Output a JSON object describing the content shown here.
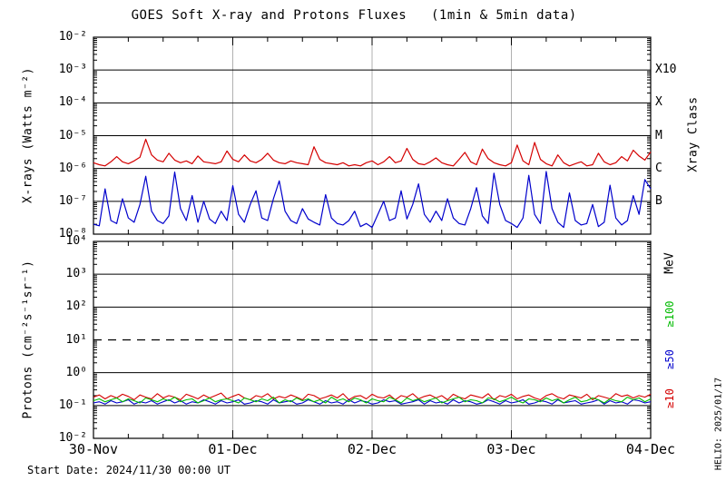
{
  "title": "GOES Soft X-ray and Protons Fluxes   (1min & 5min data)",
  "footer": {
    "start_date": "Start Date: 2024/11/30 00:00 UT"
  },
  "watermark": "HELIO: 2025/01/17",
  "colors": {
    "background": "#ffffff",
    "frame": "#000000",
    "day_gridline": "#b0b0b0",
    "xray_long_red": "#d40000",
    "xray_short_blue": "#0000cc",
    "proton_ge10_red": "#d40000",
    "proton_ge50_blue": "#0000cc",
    "proton_ge100_green": "#00bb00"
  },
  "chart_data": [
    {
      "type": "line",
      "panel": "xray",
      "yscale": "log",
      "ylabel": "X-rays (Watts m⁻²)",
      "ylim": [
        1e-08,
        0.01
      ],
      "ytick_labels": [
        "10⁻²",
        "10⁻³",
        "10⁻⁴",
        "10⁻⁵",
        "10⁻⁶",
        "10⁻⁷",
        "10⁻⁸"
      ],
      "xlim": [
        0,
        96
      ],
      "x_unit": "hours from 30-Nov 00:00 UT",
      "day_gridlines_hours": [
        24,
        48,
        72
      ],
      "gridlines": {
        "solid_decades": [
          -3,
          -4,
          -5,
          -6,
          -7
        ],
        "dashed_decades": []
      },
      "right_axis": {
        "title": "Xray Class",
        "labels": [
          {
            "text": "X10",
            "at_flux": 0.001
          },
          {
            "text": "X",
            "at_flux": 0.0001
          },
          {
            "text": "M",
            "at_flux": 1e-05
          },
          {
            "text": "C",
            "at_flux": 1e-06
          },
          {
            "text": "B",
            "at_flux": 1e-07
          }
        ]
      },
      "series": [
        {
          "name": "xray-long-1-8A",
          "color": "#d40000",
          "unit_scale": 1e-06,
          "width": 1.2,
          "values": [
            1.5,
            1.3,
            1.2,
            1.6,
            2.3,
            1.6,
            1.4,
            1.7,
            2.2,
            7.8,
            2.6,
            1.8,
            1.6,
            2.9,
            1.8,
            1.5,
            1.7,
            1.4,
            2.4,
            1.6,
            1.5,
            1.4,
            1.6,
            3.4,
            1.9,
            1.6,
            2.6,
            1.7,
            1.5,
            1.9,
            2.9,
            1.8,
            1.5,
            1.4,
            1.7,
            1.5,
            1.4,
            1.3,
            4.6,
            1.9,
            1.5,
            1.4,
            1.3,
            1.5,
            1.2,
            1.3,
            1.2,
            1.5,
            1.7,
            1.3,
            1.6,
            2.3,
            1.5,
            1.7,
            4.1,
            1.9,
            1.4,
            1.3,
            1.6,
            2.1,
            1.5,
            1.3,
            1.2,
            1.9,
            3.1,
            1.6,
            1.3,
            3.9,
            2.0,
            1.5,
            1.3,
            1.2,
            1.5,
            5.2,
            1.7,
            1.3,
            6.2,
            1.9,
            1.4,
            1.2,
            2.6,
            1.5,
            1.2,
            1.4,
            1.6,
            1.2,
            1.3,
            2.9,
            1.6,
            1.3,
            1.5,
            2.3,
            1.7,
            3.6,
            2.4,
            1.8,
            3.2
          ]
        },
        {
          "name": "xray-short-05-4A",
          "color": "#0000cc",
          "unit_scale": 1e-08,
          "width": 1.2,
          "values": [
            2.0,
            1.8,
            24,
            2.6,
            2.1,
            12,
            3.1,
            2.3,
            8,
            58,
            5,
            2.6,
            2.1,
            3.6,
            78,
            6,
            2.6,
            15,
            2.3,
            10,
            2.9,
            2.1,
            5,
            2.6,
            30,
            4,
            2.3,
            8,
            21,
            3.1,
            2.6,
            12,
            42,
            5,
            2.6,
            2.1,
            6,
            2.9,
            2.3,
            1.9,
            16,
            3.1,
            2.1,
            1.9,
            2.6,
            5,
            1.7,
            2.1,
            1.6,
            4,
            10,
            2.6,
            3.1,
            21,
            2.9,
            8,
            34,
            4,
            2.3,
            5,
            2.6,
            12,
            3.1,
            2.1,
            1.9,
            6,
            26,
            3.6,
            2.1,
            72,
            8,
            2.6,
            2.1,
            1.6,
            3.1,
            62,
            4,
            2.1,
            81,
            6,
            2.3,
            1.6,
            18,
            2.6,
            1.9,
            2.1,
            8,
            1.7,
            2.3,
            31,
            3.1,
            1.9,
            2.6,
            15,
            4,
            46,
            24
          ]
        }
      ]
    },
    {
      "type": "line",
      "panel": "proton",
      "yscale": "log",
      "ylabel": "Protons (cm⁻²s⁻¹sr⁻¹)",
      "ylim": [
        0.01,
        10000.0
      ],
      "ytick_labels": [
        "10⁴",
        "10³",
        "10²",
        "10¹",
        "10⁰",
        "10⁻¹",
        "10⁻²"
      ],
      "xlim": [
        0,
        96
      ],
      "xticks": {
        "positions_hours": [
          0,
          24,
          48,
          72,
          96
        ],
        "labels": [
          "30-Nov",
          "01-Dec",
          "02-Dec",
          "03-Dec",
          "04-Dec"
        ]
      },
      "day_gridlines_hours": [
        24,
        48,
        72
      ],
      "gridlines": {
        "solid_decades": [
          3,
          2,
          0,
          -1
        ],
        "dashed_decades": [
          1
        ]
      },
      "threshold_line": {
        "value": 10,
        "style": "dashed"
      },
      "right_axis": {
        "title": "MeV",
        "labels": [
          {
            "text": "≥100",
            "color": "#00bb00"
          },
          {
            "text": "≥50",
            "color": "#0000cc"
          },
          {
            "text": "≥10",
            "color": "#d40000"
          }
        ]
      },
      "series": [
        {
          "name": "proton-ge10MeV",
          "color": "#d40000",
          "unit_scale": 1,
          "width": 1.1,
          "values": [
            0.18,
            0.21,
            0.16,
            0.2,
            0.17,
            0.22,
            0.19,
            0.15,
            0.21,
            0.18,
            0.16,
            0.23,
            0.17,
            0.2,
            0.18,
            0.15,
            0.22,
            0.19,
            0.16,
            0.21,
            0.17,
            0.2,
            0.24,
            0.16,
            0.19,
            0.22,
            0.17,
            0.15,
            0.2,
            0.18,
            0.23,
            0.16,
            0.19,
            0.17,
            0.21,
            0.18,
            0.15,
            0.22,
            0.2,
            0.16,
            0.18,
            0.21,
            0.17,
            0.23,
            0.15,
            0.19,
            0.2,
            0.16,
            0.22,
            0.18,
            0.17,
            0.21,
            0.15,
            0.2,
            0.18,
            0.23,
            0.16,
            0.19,
            0.21,
            0.17,
            0.2,
            0.15,
            0.22,
            0.18,
            0.16,
            0.21,
            0.19,
            0.17,
            0.23,
            0.15,
            0.2,
            0.18,
            0.22,
            0.16,
            0.19,
            0.21,
            0.17,
            0.15,
            0.2,
            0.23,
            0.18,
            0.16,
            0.21,
            0.19,
            0.17,
            0.22,
            0.15,
            0.2,
            0.18,
            0.16,
            0.23,
            0.19,
            0.21,
            0.17,
            0.2,
            0.18,
            0.22
          ]
        },
        {
          "name": "proton-ge50MeV",
          "color": "#0000cc",
          "unit_scale": 1,
          "width": 1.1,
          "values": [
            0.12,
            0.13,
            0.11,
            0.14,
            0.12,
            0.13,
            0.15,
            0.11,
            0.13,
            0.12,
            0.14,
            0.11,
            0.13,
            0.15,
            0.12,
            0.14,
            0.11,
            0.13,
            0.12,
            0.15,
            0.13,
            0.11,
            0.14,
            0.12,
            0.13,
            0.15,
            0.11,
            0.12,
            0.14,
            0.13,
            0.11,
            0.15,
            0.12,
            0.13,
            0.14,
            0.11,
            0.12,
            0.15,
            0.13,
            0.11,
            0.14,
            0.12,
            0.13,
            0.11,
            0.15,
            0.12,
            0.14,
            0.13,
            0.11,
            0.12,
            0.15,
            0.13,
            0.14,
            0.11,
            0.12,
            0.13,
            0.15,
            0.11,
            0.14,
            0.12,
            0.13,
            0.11,
            0.15,
            0.12,
            0.14,
            0.13,
            0.11,
            0.12,
            0.15,
            0.13,
            0.11,
            0.14,
            0.12,
            0.13,
            0.15,
            0.11,
            0.12,
            0.14,
            0.13,
            0.11,
            0.15,
            0.12,
            0.13,
            0.14,
            0.11,
            0.12,
            0.13,
            0.15,
            0.11,
            0.14,
            0.12,
            0.13,
            0.11,
            0.15,
            0.14,
            0.12,
            0.13
          ]
        },
        {
          "name": "proton-ge100MeV",
          "color": "#00bb00",
          "unit_scale": 1,
          "width": 1.1,
          "values": [
            0.14,
            0.16,
            0.13,
            0.15,
            0.17,
            0.13,
            0.16,
            0.14,
            0.12,
            0.17,
            0.15,
            0.13,
            0.16,
            0.14,
            0.18,
            0.13,
            0.15,
            0.16,
            0.12,
            0.14,
            0.17,
            0.13,
            0.15,
            0.16,
            0.14,
            0.12,
            0.17,
            0.15,
            0.13,
            0.16,
            0.14,
            0.18,
            0.12,
            0.15,
            0.13,
            0.17,
            0.14,
            0.16,
            0.13,
            0.15,
            0.12,
            0.18,
            0.14,
            0.16,
            0.13,
            0.17,
            0.15,
            0.12,
            0.16,
            0.14,
            0.13,
            0.18,
            0.15,
            0.12,
            0.17,
            0.14,
            0.16,
            0.13,
            0.15,
            0.17,
            0.12,
            0.14,
            0.16,
            0.18,
            0.13,
            0.15,
            0.14,
            0.12,
            0.17,
            0.16,
            0.13,
            0.15,
            0.18,
            0.14,
            0.12,
            0.16,
            0.15,
            0.13,
            0.17,
            0.14,
            0.16,
            0.12,
            0.15,
            0.18,
            0.13,
            0.14,
            0.17,
            0.15,
            0.12,
            0.16,
            0.14,
            0.13,
            0.18,
            0.15,
            0.17,
            0.13,
            0.16
          ]
        }
      ]
    }
  ]
}
